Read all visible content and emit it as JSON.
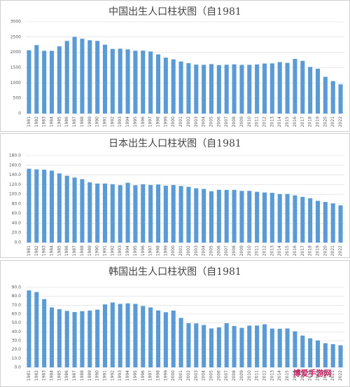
{
  "chart_data": [
    {
      "type": "bar",
      "title": "中国出生人口柱状图（自1981",
      "color": "#5b9bd5",
      "categories": [
        "1981",
        "1982",
        "1983",
        "1984",
        "1985",
        "1986",
        "1987",
        "1988",
        "1989",
        "1990",
        "1991",
        "1992",
        "1993",
        "1994",
        "1995",
        "1996",
        "1997",
        "1998",
        "1999",
        "2000",
        "2001",
        "2002",
        "2003",
        "2004",
        "2005",
        "2006",
        "2007",
        "2008",
        "2009",
        "2010",
        "2011",
        "2012",
        "2013",
        "2014",
        "2015",
        "2016",
        "2017",
        "2018",
        "2019",
        "2020",
        "2021",
        "2022"
      ],
      "values": [
        2069,
        2237,
        2052,
        2050,
        2196,
        2374,
        2508,
        2445,
        2396,
        2374,
        2250,
        2113,
        2120,
        2098,
        2052,
        2057,
        2028,
        1934,
        1827,
        1771,
        1702,
        1647,
        1599,
        1593,
        1617,
        1585,
        1595,
        1608,
        1591,
        1592,
        1604,
        1635,
        1640,
        1683,
        1655,
        1786,
        1723,
        1523,
        1465,
        1202,
        1062,
        956
      ],
      "ylim": [
        0,
        3000
      ],
      "yticks": [
        0,
        500,
        1000,
        1500,
        2000,
        2500,
        3000
      ],
      "grid": true
    },
    {
      "type": "bar",
      "title": "日本出生人口柱状图（自1981",
      "color": "#5b9bd5",
      "categories": [
        "1981",
        "1982",
        "1983",
        "1984",
        "1985",
        "1986",
        "1987",
        "1988",
        "1989",
        "1990",
        "1991",
        "1992",
        "1993",
        "1994",
        "1995",
        "1996",
        "1997",
        "1998",
        "1999",
        "2000",
        "2001",
        "2002",
        "2003",
        "2004",
        "2005",
        "2006",
        "2007",
        "2008",
        "2009",
        "2010",
        "2011",
        "2012",
        "2013",
        "2014",
        "2015",
        "2016",
        "2017",
        "2018",
        "2019",
        "2020",
        "2021",
        "2022"
      ],
      "values": [
        152.9,
        151.5,
        150.9,
        149.0,
        143.2,
        138.3,
        134.7,
        131.4,
        124.7,
        122.2,
        122.3,
        120.9,
        118.8,
        123.8,
        118.7,
        120.7,
        119.2,
        120.3,
        117.8,
        119.1,
        117.1,
        115.4,
        112.4,
        111.1,
        106.3,
        109.3,
        109.0,
        109.1,
        107.0,
        107.1,
        105.1,
        103.7,
        103.0,
        100.4,
        100.6,
        97.7,
        94.6,
        91.8,
        86.5,
        84.1,
        81.2,
        77.1
      ],
      "ylim": [
        0,
        180
      ],
      "yticks": [
        {
          "value": 0,
          "label": "0.0"
        },
        {
          "value": 20,
          "label": "20.0"
        },
        {
          "value": 40,
          "label": "40.0"
        },
        {
          "value": 60,
          "label": "60.0"
        },
        {
          "value": 80,
          "label": "80.0"
        },
        {
          "value": 100,
          "label": "100.0"
        },
        {
          "value": 120,
          "label": "120.0"
        },
        {
          "value": 140,
          "label": "140.0"
        },
        {
          "value": 160,
          "label": "160.0"
        },
        {
          "value": 180,
          "label": "180.0"
        }
      ],
      "grid": true
    },
    {
      "type": "bar",
      "title": "韩国出生人口柱状图（自1981",
      "color": "#5b9bd5",
      "categories": [
        "1981",
        "1982",
        "1983",
        "1984",
        "1985",
        "1986",
        "1987",
        "1988",
        "1989",
        "1990",
        "1991",
        "1992",
        "1993",
        "1994",
        "1995",
        "1996",
        "1997",
        "1998",
        "1999",
        "2000",
        "2001",
        "2002",
        "2003",
        "2004",
        "2005",
        "2006",
        "2007",
        "2008",
        "2009",
        "2010",
        "2011",
        "2012",
        "2013",
        "2014",
        "2015",
        "2016",
        "2017",
        "2018",
        "2019",
        "2020",
        "2021",
        "2022"
      ],
      "values": [
        86.7,
        84.8,
        76.9,
        67.5,
        65.5,
        63.6,
        62.3,
        63.3,
        63.9,
        65.0,
        70.9,
        73.1,
        71.5,
        72.1,
        71.5,
        69.1,
        67.5,
        64.1,
        62.1,
        64.0,
        55.7,
        49.7,
        49.5,
        47.7,
        43.8,
        45.1,
        49.7,
        46.6,
        44.5,
        47.0,
        47.1,
        48.5,
        43.7,
        43.5,
        43.8,
        40.6,
        35.8,
        32.7,
        30.3,
        27.2,
        26.1,
        24.9
      ],
      "ylim": [
        0,
        90
      ],
      "yticks": [
        {
          "value": 0,
          "label": "0.0"
        },
        {
          "value": 10,
          "label": "10.0"
        },
        {
          "value": 20,
          "label": "20.0"
        },
        {
          "value": 30,
          "label": "30.0"
        },
        {
          "value": 40,
          "label": "40.0"
        },
        {
          "value": 50,
          "label": "50.0"
        },
        {
          "value": 60,
          "label": "60.0"
        },
        {
          "value": 70,
          "label": "70.0"
        },
        {
          "value": 80,
          "label": "80.0"
        },
        {
          "value": 90,
          "label": "90.0"
        }
      ],
      "grid": true
    }
  ],
  "watermark": "博爱手游网"
}
